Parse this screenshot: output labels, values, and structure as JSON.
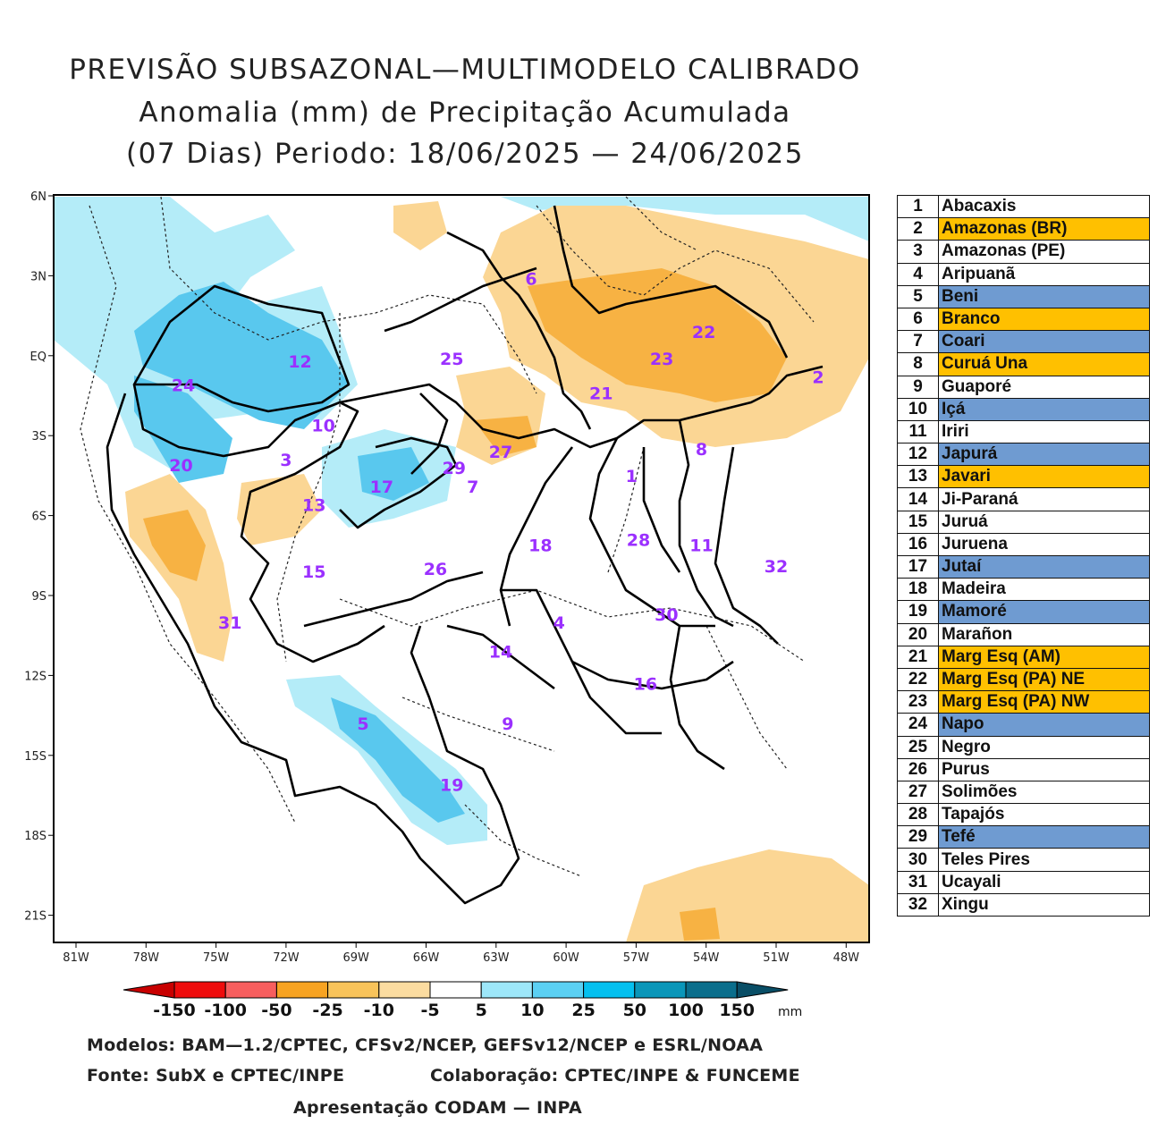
{
  "title": {
    "line1": "PREVISÃO SUBSAZONAL—MULTIMODELO CALIBRADO",
    "line2": "Anomalia (mm) de Precipitação Acumulada",
    "line3": "(07 Dias) Periodo: 18/06/2025 — 24/06/2025"
  },
  "map": {
    "lat_labels": [
      "6N",
      "3N",
      "EQ",
      "3S",
      "6S",
      "9S",
      "12S",
      "15S",
      "18S",
      "21S"
    ],
    "lon_labels": [
      "81W",
      "78W",
      "75W",
      "72W",
      "69W",
      "66W",
      "63W",
      "60W",
      "57W",
      "54W",
      "51W",
      "48W"
    ],
    "basin_labels": [
      {
        "n": "1",
        "lon": -57.2,
        "lat": -4.5
      },
      {
        "n": "2",
        "lon": -49.2,
        "lat": -0.8
      },
      {
        "n": "3",
        "lon": -72.0,
        "lat": -3.9
      },
      {
        "n": "4",
        "lon": -60.3,
        "lat": -10.0
      },
      {
        "n": "5",
        "lon": -68.7,
        "lat": -13.8
      },
      {
        "n": "6",
        "lon": -61.5,
        "lat": 2.9
      },
      {
        "n": "7",
        "lon": -64.0,
        "lat": -4.9
      },
      {
        "n": "8",
        "lon": -54.2,
        "lat": -3.5
      },
      {
        "n": "9",
        "lon": -62.5,
        "lat": -13.8
      },
      {
        "n": "10",
        "lon": -70.4,
        "lat": -2.6
      },
      {
        "n": "11",
        "lon": -54.2,
        "lat": -7.1
      },
      {
        "n": "12",
        "lon": -71.4,
        "lat": -0.2
      },
      {
        "n": "13",
        "lon": -70.8,
        "lat": -5.6
      },
      {
        "n": "14",
        "lon": -62.8,
        "lat": -11.1
      },
      {
        "n": "15",
        "lon": -70.8,
        "lat": -8.1
      },
      {
        "n": "16",
        "lon": -56.6,
        "lat": -12.3
      },
      {
        "n": "17",
        "lon": -67.9,
        "lat": -4.9
      },
      {
        "n": "18",
        "lon": -61.1,
        "lat": -7.1
      },
      {
        "n": "19",
        "lon": -64.9,
        "lat": -16.1
      },
      {
        "n": "20",
        "lon": -76.5,
        "lat": -4.1
      },
      {
        "n": "21",
        "lon": -58.5,
        "lat": -1.4
      },
      {
        "n": "22",
        "lon": -54.1,
        "lat": 0.9
      },
      {
        "n": "23",
        "lon": -55.9,
        "lat": -0.1
      },
      {
        "n": "24",
        "lon": -76.4,
        "lat": -1.1
      },
      {
        "n": "25",
        "lon": -64.9,
        "lat": -0.1
      },
      {
        "n": "26",
        "lon": -65.6,
        "lat": -8.0
      },
      {
        "n": "27",
        "lon": -62.8,
        "lat": -3.6
      },
      {
        "n": "28",
        "lon": -56.9,
        "lat": -6.9
      },
      {
        "n": "29",
        "lon": -64.8,
        "lat": -4.2
      },
      {
        "n": "30",
        "lon": -55.7,
        "lat": -9.7
      },
      {
        "n": "31",
        "lon": -74.4,
        "lat": -10.0
      },
      {
        "n": "32",
        "lon": -51.0,
        "lat": -7.9
      }
    ],
    "colors": {
      "ocean": "#ffffff",
      "border": "#000000",
      "wet_light": "#b4ecf8",
      "wet_mid": "#59c8ee",
      "dry_light": "#fbd694",
      "dry_mid": "#f7b243"
    }
  },
  "colorbar": {
    "labels": [
      "-150",
      "-100",
      "-50",
      "-25",
      "-10",
      "-5",
      "5",
      "10",
      "25",
      "50",
      "100",
      "150"
    ],
    "colors": [
      "#c80000",
      "#ee0c0c",
      "#f75e5e",
      "#f7a322",
      "#f8c35a",
      "#fbdca0",
      "#ffffff",
      "#9de7f9",
      "#5bd0f3",
      "#05c0ef",
      "#0a96b9",
      "#0a6e8c",
      "#094e66"
    ],
    "unit": "mm"
  },
  "footer": {
    "models": "Modelos: BAM—1.2/CPTEC, CFSv2/NCEP, GEFSv12/NCEP e ESRL/NOAA",
    "source": "Fonte: SubX e CPTEC/INPE",
    "collab": "Colaboração: CPTEC/INPE & FUNCEME",
    "presentation": "Apresentação CODAM — INPA"
  },
  "basins": [
    {
      "num": "1",
      "name": "Abacaxis",
      "color": "#ffffff"
    },
    {
      "num": "2",
      "name": "Amazonas (BR)",
      "color": "#ffc000"
    },
    {
      "num": "3",
      "name": "Amazonas (PE)",
      "color": "#ffffff"
    },
    {
      "num": "4",
      "name": "Aripuanã",
      "color": "#ffffff"
    },
    {
      "num": "5",
      "name": "Beni",
      "color": "#6f9bd1"
    },
    {
      "num": "6",
      "name": "Branco",
      "color": "#ffc000"
    },
    {
      "num": "7",
      "name": "Coari",
      "color": "#6f9bd1"
    },
    {
      "num": "8",
      "name": "Curuá Una",
      "color": "#ffc000"
    },
    {
      "num": "9",
      "name": "Guaporé",
      "color": "#ffffff"
    },
    {
      "num": "10",
      "name": "Içá",
      "color": "#6f9bd1"
    },
    {
      "num": "11",
      "name": "Iriri",
      "color": "#ffffff"
    },
    {
      "num": "12",
      "name": "Japurá",
      "color": "#6f9bd1"
    },
    {
      "num": "13",
      "name": "Javari",
      "color": "#ffc000"
    },
    {
      "num": "14",
      "name": "Ji-Paraná",
      "color": "#ffffff"
    },
    {
      "num": "15",
      "name": "Juruá",
      "color": "#ffffff"
    },
    {
      "num": "16",
      "name": "Juruena",
      "color": "#ffffff"
    },
    {
      "num": "17",
      "name": "Jutaí",
      "color": "#6f9bd1"
    },
    {
      "num": "18",
      "name": "Madeira",
      "color": "#ffffff"
    },
    {
      "num": "19",
      "name": "Mamoré",
      "color": "#6f9bd1"
    },
    {
      "num": "20",
      "name": "Marañon",
      "color": "#ffffff"
    },
    {
      "num": "21",
      "name": "Marg Esq (AM)",
      "color": "#ffc000"
    },
    {
      "num": "22",
      "name": "Marg Esq (PA) NE",
      "color": "#ffc000"
    },
    {
      "num": "23",
      "name": "Marg Esq (PA) NW",
      "color": "#ffc000"
    },
    {
      "num": "24",
      "name": "Napo",
      "color": "#6f9bd1"
    },
    {
      "num": "25",
      "name": "Negro",
      "color": "#ffffff"
    },
    {
      "num": "26",
      "name": "Purus",
      "color": "#ffffff"
    },
    {
      "num": "27",
      "name": "Solimões",
      "color": "#ffffff"
    },
    {
      "num": "28",
      "name": "Tapajós",
      "color": "#ffffff"
    },
    {
      "num": "29",
      "name": "Tefé",
      "color": "#6f9bd1"
    },
    {
      "num": "30",
      "name": "Teles Pires",
      "color": "#ffffff"
    },
    {
      "num": "31",
      "name": "Ucayali",
      "color": "#ffffff"
    },
    {
      "num": "32",
      "name": "Xingu",
      "color": "#ffffff"
    }
  ]
}
